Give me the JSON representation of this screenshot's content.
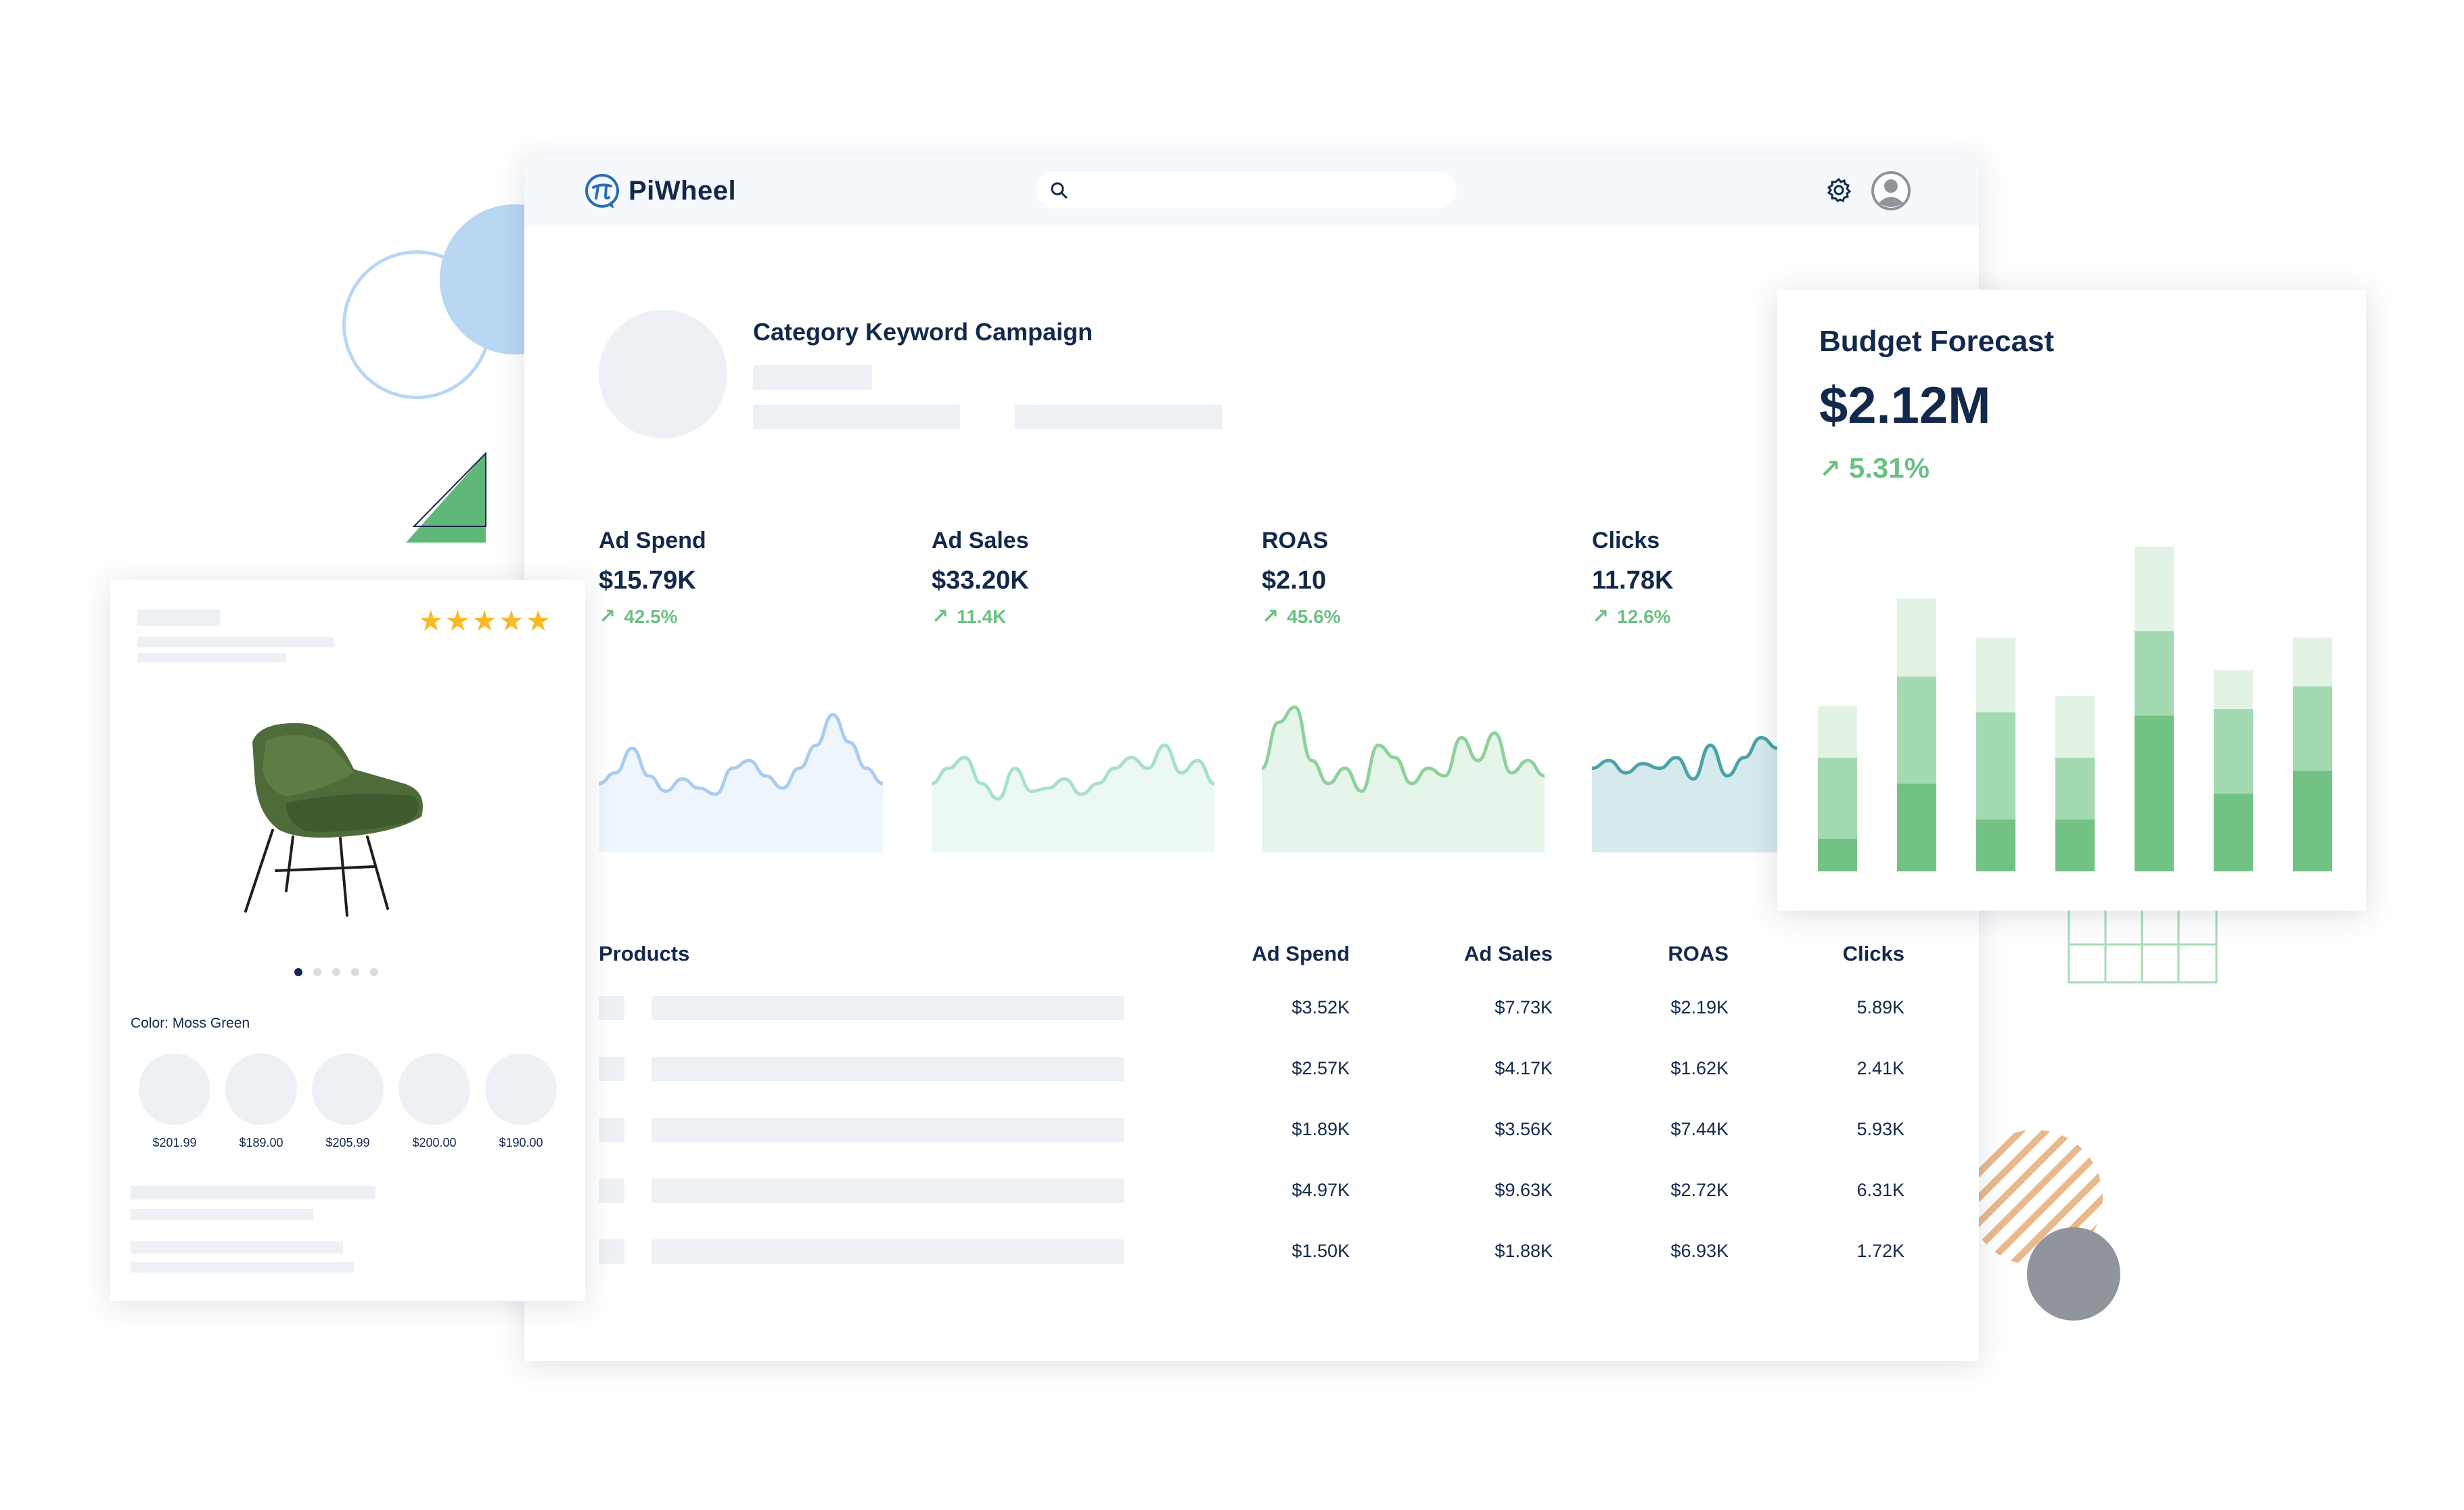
{
  "app": {
    "name": "PiWheel"
  },
  "search": {
    "placeholder": ""
  },
  "campaign": {
    "title": "Category Keyword Campaign"
  },
  "metrics": [
    {
      "label": "Ad Spend",
      "value": "$15.79K",
      "change": "42.5%",
      "color": "#a9cdf0",
      "fill": "#eef5fd",
      "series": [
        0.45,
        0.52,
        0.68,
        0.5,
        0.4,
        0.48,
        0.42,
        0.38,
        0.55,
        0.6,
        0.5,
        0.42,
        0.55,
        0.7,
        0.9,
        0.72,
        0.55,
        0.45
      ]
    },
    {
      "label": "Ad Sales",
      "value": "$33.20K",
      "change": "11.4K",
      "color": "#a6e0cf",
      "fill": "#ecf8f4",
      "series": [
        0.45,
        0.55,
        0.62,
        0.45,
        0.35,
        0.55,
        0.4,
        0.42,
        0.48,
        0.38,
        0.45,
        0.55,
        0.62,
        0.55,
        0.7,
        0.52,
        0.6,
        0.45
      ]
    },
    {
      "label": "ROAS",
      "value": "$2.10",
      "change": "45.6%",
      "color": "#8fd19c",
      "fill": "#e6f5ea",
      "series": [
        0.55,
        0.85,
        0.95,
        0.6,
        0.45,
        0.55,
        0.4,
        0.7,
        0.62,
        0.45,
        0.55,
        0.5,
        0.75,
        0.6,
        0.78,
        0.52,
        0.6,
        0.5
      ]
    },
    {
      "label": "Clicks",
      "value": "11.78K",
      "change": "12.6%",
      "color": "#4aa3a8",
      "fill": "#d6eaee",
      "series": [
        0.55,
        0.6,
        0.52,
        0.58,
        0.55,
        0.62,
        0.48,
        0.7,
        0.5,
        0.62,
        0.75,
        0.68,
        0.72
      ]
    }
  ],
  "table": {
    "headers": [
      "Products",
      "Ad Spend",
      "Ad Sales",
      "ROAS",
      "Clicks"
    ],
    "rows": [
      [
        "$3.52K",
        "$7.73K",
        "$2.19K",
        "5.89K"
      ],
      [
        "$2.57K",
        "$4.17K",
        "$1.62K",
        "2.41K"
      ],
      [
        "$1.89K",
        "$3.56K",
        "$7.44K",
        "5.93K"
      ],
      [
        "$4.97K",
        "$9.63K",
        "$2.72K",
        "6.31K"
      ],
      [
        "$1.50K",
        "$1.88K",
        "$6.93K",
        "1.72K"
      ]
    ]
  },
  "product_card": {
    "rating": 5,
    "stars": "★★★★★",
    "color_label": "Color: Moss Green",
    "prices": [
      "$201.99",
      "$189.00",
      "$205.99",
      "$200.00",
      "$190.00"
    ]
  },
  "budget": {
    "title": "Budget Forecast",
    "value": "$2.12M",
    "change": "5.31%",
    "colors": {
      "light": "#e2f3e6",
      "mid": "#a3dab1",
      "dark": "#72c283"
    },
    "chart_data": {
      "type": "bar",
      "stacked": true,
      "categories": [
        "",
        "",
        "",
        "",
        "",
        "",
        ""
      ],
      "series": [
        {
          "values": [
            10,
            27,
            16,
            16,
            48,
            24,
            31
          ]
        },
        {
          "values": [
            25,
            33,
            33,
            19,
            26,
            26,
            26
          ]
        },
        {
          "values": [
            16,
            24,
            23,
            19,
            26,
            12,
            15
          ]
        }
      ],
      "ylim": [
        0,
        100
      ]
    }
  },
  "colors": {
    "accent": "#6cc083",
    "navy": "#13294b",
    "skeleton": "#edf1f5"
  }
}
